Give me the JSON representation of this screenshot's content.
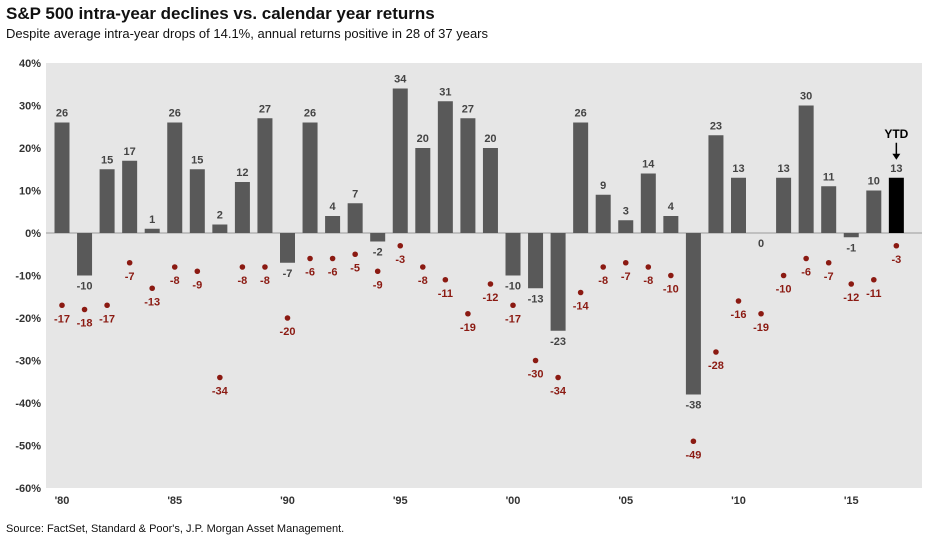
{
  "title": "S&P 500 intra-year declines vs. calendar year returns",
  "subtitle": "Despite average intra-year drops of 14.1%, annual returns positive in 28 of 37 years",
  "source": "Source: FactSet, Standard & Poor's, J.P. Morgan Asset Management.",
  "colors": {
    "background": "#e6e6e6",
    "bar": "#595959",
    "ytd_bar": "#000000",
    "decline_dot": "#8b1a12",
    "decline_label": "#8b1a12"
  },
  "chart_data": {
    "type": "bar",
    "title": "S&P 500 intra-year declines vs. calendar year returns",
    "xlabel": "",
    "ylabel": "",
    "ylim": [
      -60,
      40
    ],
    "yticks": [
      "-60%",
      "-50%",
      "-40%",
      "-30%",
      "-20%",
      "-10%",
      "0%",
      "10%",
      "20%",
      "30%",
      "40%"
    ],
    "xtick_labels": [
      {
        "label": "'80",
        "year": 1980
      },
      {
        "label": "'85",
        "year": 1985
      },
      {
        "label": "'90",
        "year": 1990
      },
      {
        "label": "'95",
        "year": 1995
      },
      {
        "label": "'00",
        "year": 2000
      },
      {
        "label": "'05",
        "year": 2005
      },
      {
        "label": "'10",
        "year": 2010
      },
      {
        "label": "'15",
        "year": 2015
      }
    ],
    "ytd_label": "YTD",
    "grid": false,
    "categories": [
      1980,
      1981,
      1982,
      1983,
      1984,
      1985,
      1986,
      1987,
      1988,
      1989,
      1990,
      1991,
      1992,
      1993,
      1994,
      1995,
      1996,
      1997,
      1998,
      1999,
      2000,
      2001,
      2002,
      2003,
      2004,
      2005,
      2006,
      2007,
      2008,
      2009,
      2010,
      2011,
      2012,
      2013,
      2014,
      2015,
      2016,
      2017
    ],
    "series": [
      {
        "values": [
          26,
          -10,
          15,
          17,
          1,
          26,
          15,
          2,
          12,
          27,
          -7,
          26,
          4,
          7,
          -2,
          34,
          20,
          31,
          27,
          20,
          -10,
          -13,
          -23,
          26,
          9,
          3,
          14,
          4,
          -38,
          23,
          13,
          0,
          13,
          30,
          11,
          -1,
          10,
          13
        ]
      },
      {
        "values": [
          -17,
          -18,
          -17,
          -7,
          -13,
          -8,
          -9,
          -34,
          -8,
          -8,
          -20,
          -6,
          -6,
          -5,
          -9,
          -3,
          -8,
          -11,
          -19,
          -12,
          -17,
          -30,
          -34,
          -14,
          -8,
          -7,
          -8,
          -10,
          -49,
          -28,
          -16,
          -19,
          -10,
          -6,
          -7,
          -12,
          -11,
          -3
        ]
      }
    ]
  }
}
